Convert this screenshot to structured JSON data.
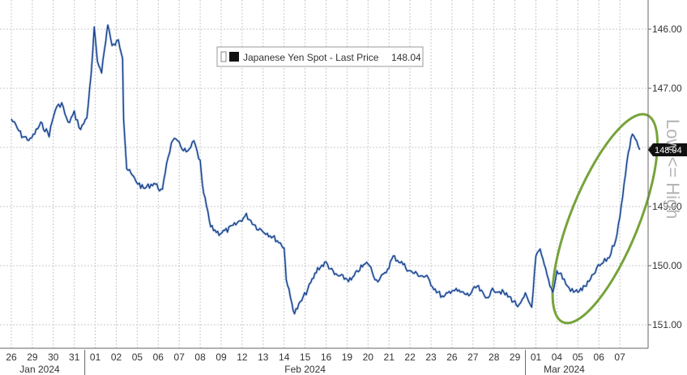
{
  "chart_data": {
    "type": "line",
    "legend": {
      "label": "Japanese Yen Spot - Last Price",
      "value": "148.04",
      "placement": "top-center"
    },
    "last_price_label": "148.04",
    "side_label": "Low <= High",
    "y_axis": {
      "position": "right",
      "inverted": true,
      "ylim": [
        145.6,
        151.3
      ],
      "ticks": [
        146.0,
        147.0,
        148.0,
        149.0,
        150.0,
        151.0
      ],
      "tick_labels": [
        "146.00",
        "147.00",
        "148.00",
        "149.00",
        "150.00",
        "151.00"
      ]
    },
    "x_axis": {
      "day_labels": [
        "26",
        "29",
        "30",
        "31",
        "01",
        "02",
        "05",
        "06",
        "07",
        "08",
        "09",
        "12",
        "13",
        "14",
        "15",
        "16",
        "19",
        "20",
        "21",
        "22",
        "23",
        "26",
        "27",
        "28",
        "29",
        "01",
        "04",
        "05",
        "06",
        "07"
      ],
      "month_labels": [
        "Jan 2024",
        "Feb 2024",
        "Mar 2024"
      ],
      "month_start_index": [
        0,
        4,
        25
      ]
    },
    "grid": true,
    "series": [
      {
        "color": "#1a3f8a",
        "values": [
          [
            0,
            147.52
          ],
          [
            0.5,
            147.8
          ],
          [
            0.9,
            147.88
          ],
          [
            1.4,
            147.6
          ],
          [
            1.8,
            147.78
          ],
          [
            2.1,
            147.35
          ],
          [
            2.4,
            147.25
          ],
          [
            2.7,
            147.6
          ],
          [
            3.0,
            147.42
          ],
          [
            3.3,
            147.7
          ],
          [
            3.6,
            147.48
          ],
          [
            3.8,
            146.8
          ],
          [
            3.95,
            146.0
          ],
          [
            4.1,
            146.55
          ],
          [
            4.3,
            146.7
          ],
          [
            4.5,
            146.2
          ],
          [
            4.6,
            145.9
          ],
          [
            4.8,
            146.3
          ],
          [
            5.1,
            146.2
          ],
          [
            5.3,
            146.45
          ],
          [
            5.35,
            147.5
          ],
          [
            5.5,
            148.35
          ],
          [
            5.9,
            148.55
          ],
          [
            6.3,
            148.7
          ],
          [
            6.8,
            148.6
          ],
          [
            7.2,
            148.75
          ],
          [
            7.4,
            148.25
          ],
          [
            7.7,
            147.85
          ],
          [
            8.0,
            147.95
          ],
          [
            8.4,
            148.1
          ],
          [
            8.7,
            147.9
          ],
          [
            9.0,
            148.25
          ],
          [
            9.1,
            148.65
          ],
          [
            9.3,
            149.0
          ],
          [
            9.5,
            149.35
          ],
          [
            9.9,
            149.45
          ],
          [
            10.3,
            149.4
          ],
          [
            10.7,
            149.3
          ],
          [
            11.2,
            149.15
          ],
          [
            11.7,
            149.35
          ],
          [
            12.2,
            149.45
          ],
          [
            12.6,
            149.55
          ],
          [
            12.9,
            149.65
          ],
          [
            13.0,
            149.7
          ],
          [
            13.1,
            150.2
          ],
          [
            13.3,
            150.55
          ],
          [
            13.5,
            150.8
          ],
          [
            13.9,
            150.55
          ],
          [
            14.2,
            150.35
          ],
          [
            14.6,
            150.05
          ],
          [
            15.0,
            149.95
          ],
          [
            15.4,
            150.15
          ],
          [
            15.8,
            150.2
          ],
          [
            16.2,
            150.25
          ],
          [
            16.6,
            150.05
          ],
          [
            17.0,
            149.95
          ],
          [
            17.4,
            150.25
          ],
          [
            17.8,
            150.15
          ],
          [
            18.2,
            149.85
          ],
          [
            18.6,
            149.95
          ],
          [
            19.0,
            150.1
          ],
          [
            19.4,
            150.15
          ],
          [
            19.8,
            150.2
          ],
          [
            20.2,
            150.4
          ],
          [
            20.6,
            150.55
          ],
          [
            21.0,
            150.4
          ],
          [
            21.4,
            150.45
          ],
          [
            21.8,
            150.5
          ],
          [
            22.2,
            150.35
          ],
          [
            22.6,
            150.55
          ],
          [
            23.0,
            150.4
          ],
          [
            23.4,
            150.45
          ],
          [
            23.8,
            150.55
          ],
          [
            24.2,
            150.7
          ],
          [
            24.5,
            150.5
          ],
          [
            24.8,
            150.7
          ],
          [
            25.0,
            149.85
          ],
          [
            25.2,
            149.75
          ],
          [
            25.4,
            150.0
          ],
          [
            25.6,
            150.25
          ],
          [
            25.8,
            150.45
          ],
          [
            26.0,
            150.1
          ],
          [
            26.2,
            150.15
          ],
          [
            26.5,
            150.35
          ],
          [
            26.8,
            150.45
          ],
          [
            27.2,
            150.4
          ],
          [
            27.6,
            150.25
          ],
          [
            27.9,
            150.05
          ],
          [
            28.2,
            149.95
          ],
          [
            28.5,
            149.85
          ],
          [
            28.8,
            149.55
          ],
          [
            29.0,
            149.2
          ],
          [
            29.2,
            148.6
          ],
          [
            29.4,
            148.1
          ],
          [
            29.6,
            147.75
          ],
          [
            29.8,
            147.9
          ],
          [
            29.95,
            148.04
          ]
        ]
      }
    ]
  }
}
